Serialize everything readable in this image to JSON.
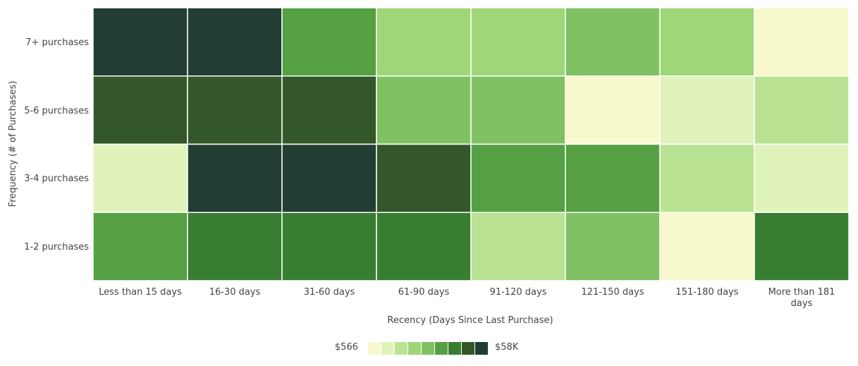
{
  "chart_data": {
    "type": "heatmap",
    "title": "",
    "xlabel": "Recency (Days Since Last Purchase)",
    "ylabel": "Frequency (# of Purchases)",
    "x_categories": [
      "Less than 15 days",
      "16-30 days",
      "31-60 days",
      "61-90 days",
      "91-120 days",
      "121-150 days",
      "151-180 days",
      "More than 181 days"
    ],
    "y_categories": [
      "7+ purchases",
      "5-6 purchases",
      "3-4 purchases",
      "1-2 purchases"
    ],
    "color_bins": [
      "#f7f8cc",
      "#dff3bb",
      "#b9e393",
      "#9fd677",
      "#7fc163",
      "#54a043",
      "#387e31",
      "#33572a",
      "#223d32"
    ],
    "cell_bins": [
      [
        8,
        8,
        5,
        3,
        3,
        4,
        3,
        0
      ],
      [
        7,
        7,
        7,
        4,
        4,
        0,
        1,
        2
      ],
      [
        1,
        8,
        8,
        7,
        5,
        5,
        2,
        1
      ],
      [
        5,
        6,
        6,
        6,
        2,
        4,
        0,
        6
      ]
    ],
    "legend": {
      "min_label": "$566",
      "max_label": "$58K",
      "placement": "bottom"
    }
  }
}
